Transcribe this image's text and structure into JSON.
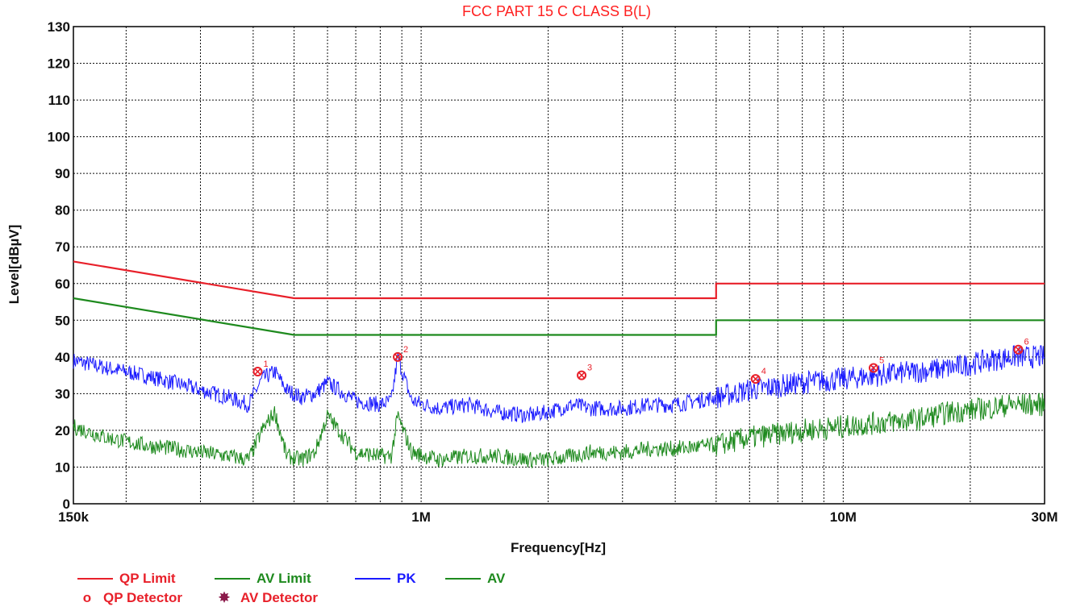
{
  "chart_data": {
    "type": "line",
    "title": "FCC PART 15 C CLASS B(L)",
    "xlabel": "Frequency[Hz]",
    "ylabel": "Level[dBµV]",
    "x_scale": "log",
    "xlim": [
      150000,
      30000000
    ],
    "ylim": [
      0,
      130
    ],
    "x_ticks": [
      {
        "value": 150000,
        "label": "150k"
      },
      {
        "value": 1000000,
        "label": "1M"
      },
      {
        "value": 10000000,
        "label": "10M"
      },
      {
        "value": 30000000,
        "label": "30M"
      }
    ],
    "y_ticks": [
      0,
      10,
      20,
      30,
      40,
      50,
      60,
      70,
      80,
      90,
      100,
      110,
      120,
      130
    ],
    "grid": true,
    "series": [
      {
        "name": "QP Limit",
        "color": "#e8202a",
        "x": [
          150000,
          500000,
          500000,
          5000000,
          5000000,
          30000000
        ],
        "y": [
          66,
          56,
          56,
          56,
          60,
          60
        ]
      },
      {
        "name": "AV Limit",
        "color": "#1e8a1e",
        "x": [
          150000,
          500000,
          500000,
          5000000,
          5000000,
          30000000
        ],
        "y": [
          56,
          46,
          46,
          46,
          50,
          50
        ]
      },
      {
        "name": "PK",
        "color": "#1a1aff",
        "x": [
          150000,
          180000,
          220000,
          260000,
          300000,
          350000,
          390000,
          420000,
          450000,
          480000,
          520000,
          560000,
          600000,
          700000,
          800000,
          850000,
          880000,
          950000,
          1100000,
          1300000,
          1500000,
          1800000,
          2000000,
          2300000,
          2500000,
          3000000,
          3500000,
          4000000,
          5000000,
          6000000,
          7000000,
          8000000,
          10000000,
          12000000,
          15000000,
          18000000,
          22000000,
          25000000,
          30000000
        ],
        "y": [
          39,
          37,
          35,
          33,
          31,
          29,
          27,
          34,
          36,
          31,
          29,
          30,
          33,
          28,
          27,
          28,
          40,
          28,
          26,
          27,
          25,
          24,
          25,
          27,
          26,
          26,
          27,
          27,
          29,
          31,
          32,
          33,
          34,
          35,
          36,
          37,
          39,
          40,
          40
        ]
      },
      {
        "name": "AV",
        "color": "#1e8a1e",
        "x": [
          150000,
          180000,
          220000,
          260000,
          300000,
          350000,
          390000,
          420000,
          450000,
          480000,
          520000,
          560000,
          600000,
          700000,
          800000,
          850000,
          880000,
          950000,
          1100000,
          1300000,
          1500000,
          1800000,
          2000000,
          2300000,
          2500000,
          3000000,
          3500000,
          4000000,
          5000000,
          6000000,
          7000000,
          8000000,
          10000000,
          12000000,
          15000000,
          18000000,
          22000000,
          25000000,
          30000000
        ],
        "y": [
          21,
          18,
          16,
          15,
          14,
          13,
          12,
          20,
          25,
          13,
          12,
          14,
          24,
          14,
          13,
          13,
          24,
          14,
          12,
          13,
          13,
          12,
          12,
          13,
          14,
          14,
          15,
          15,
          16,
          18,
          19,
          20,
          21,
          22,
          23,
          25,
          26,
          27,
          27
        ]
      }
    ],
    "markers": [
      {
        "label": "1",
        "x": 410000,
        "y": 36
      },
      {
        "label": "2",
        "x": 880000,
        "y": 40
      },
      {
        "label": "3",
        "x": 2400000,
        "y": 35
      },
      {
        "label": "4",
        "x": 6200000,
        "y": 34
      },
      {
        "label": "5",
        "x": 11800000,
        "y": 37
      },
      {
        "label": "6",
        "x": 26000000,
        "y": 42
      }
    ],
    "legend": {
      "placement": "bottom-left",
      "items": [
        {
          "label": "QP Limit",
          "kind": "line",
          "color": "#e8202a"
        },
        {
          "label": "AV Limit",
          "kind": "line",
          "color": "#1e8a1e"
        },
        {
          "label": "PK",
          "kind": "line",
          "color": "#1a1aff"
        },
        {
          "label": "AV",
          "kind": "line",
          "color": "#1e8a1e"
        },
        {
          "label": "QP Detector",
          "kind": "symbol",
          "symbol": "o",
          "color": "#e8202a"
        },
        {
          "label": "AV Detector",
          "kind": "symbol",
          "symbol": "✸",
          "color": "#8b1a4a"
        }
      ]
    }
  }
}
